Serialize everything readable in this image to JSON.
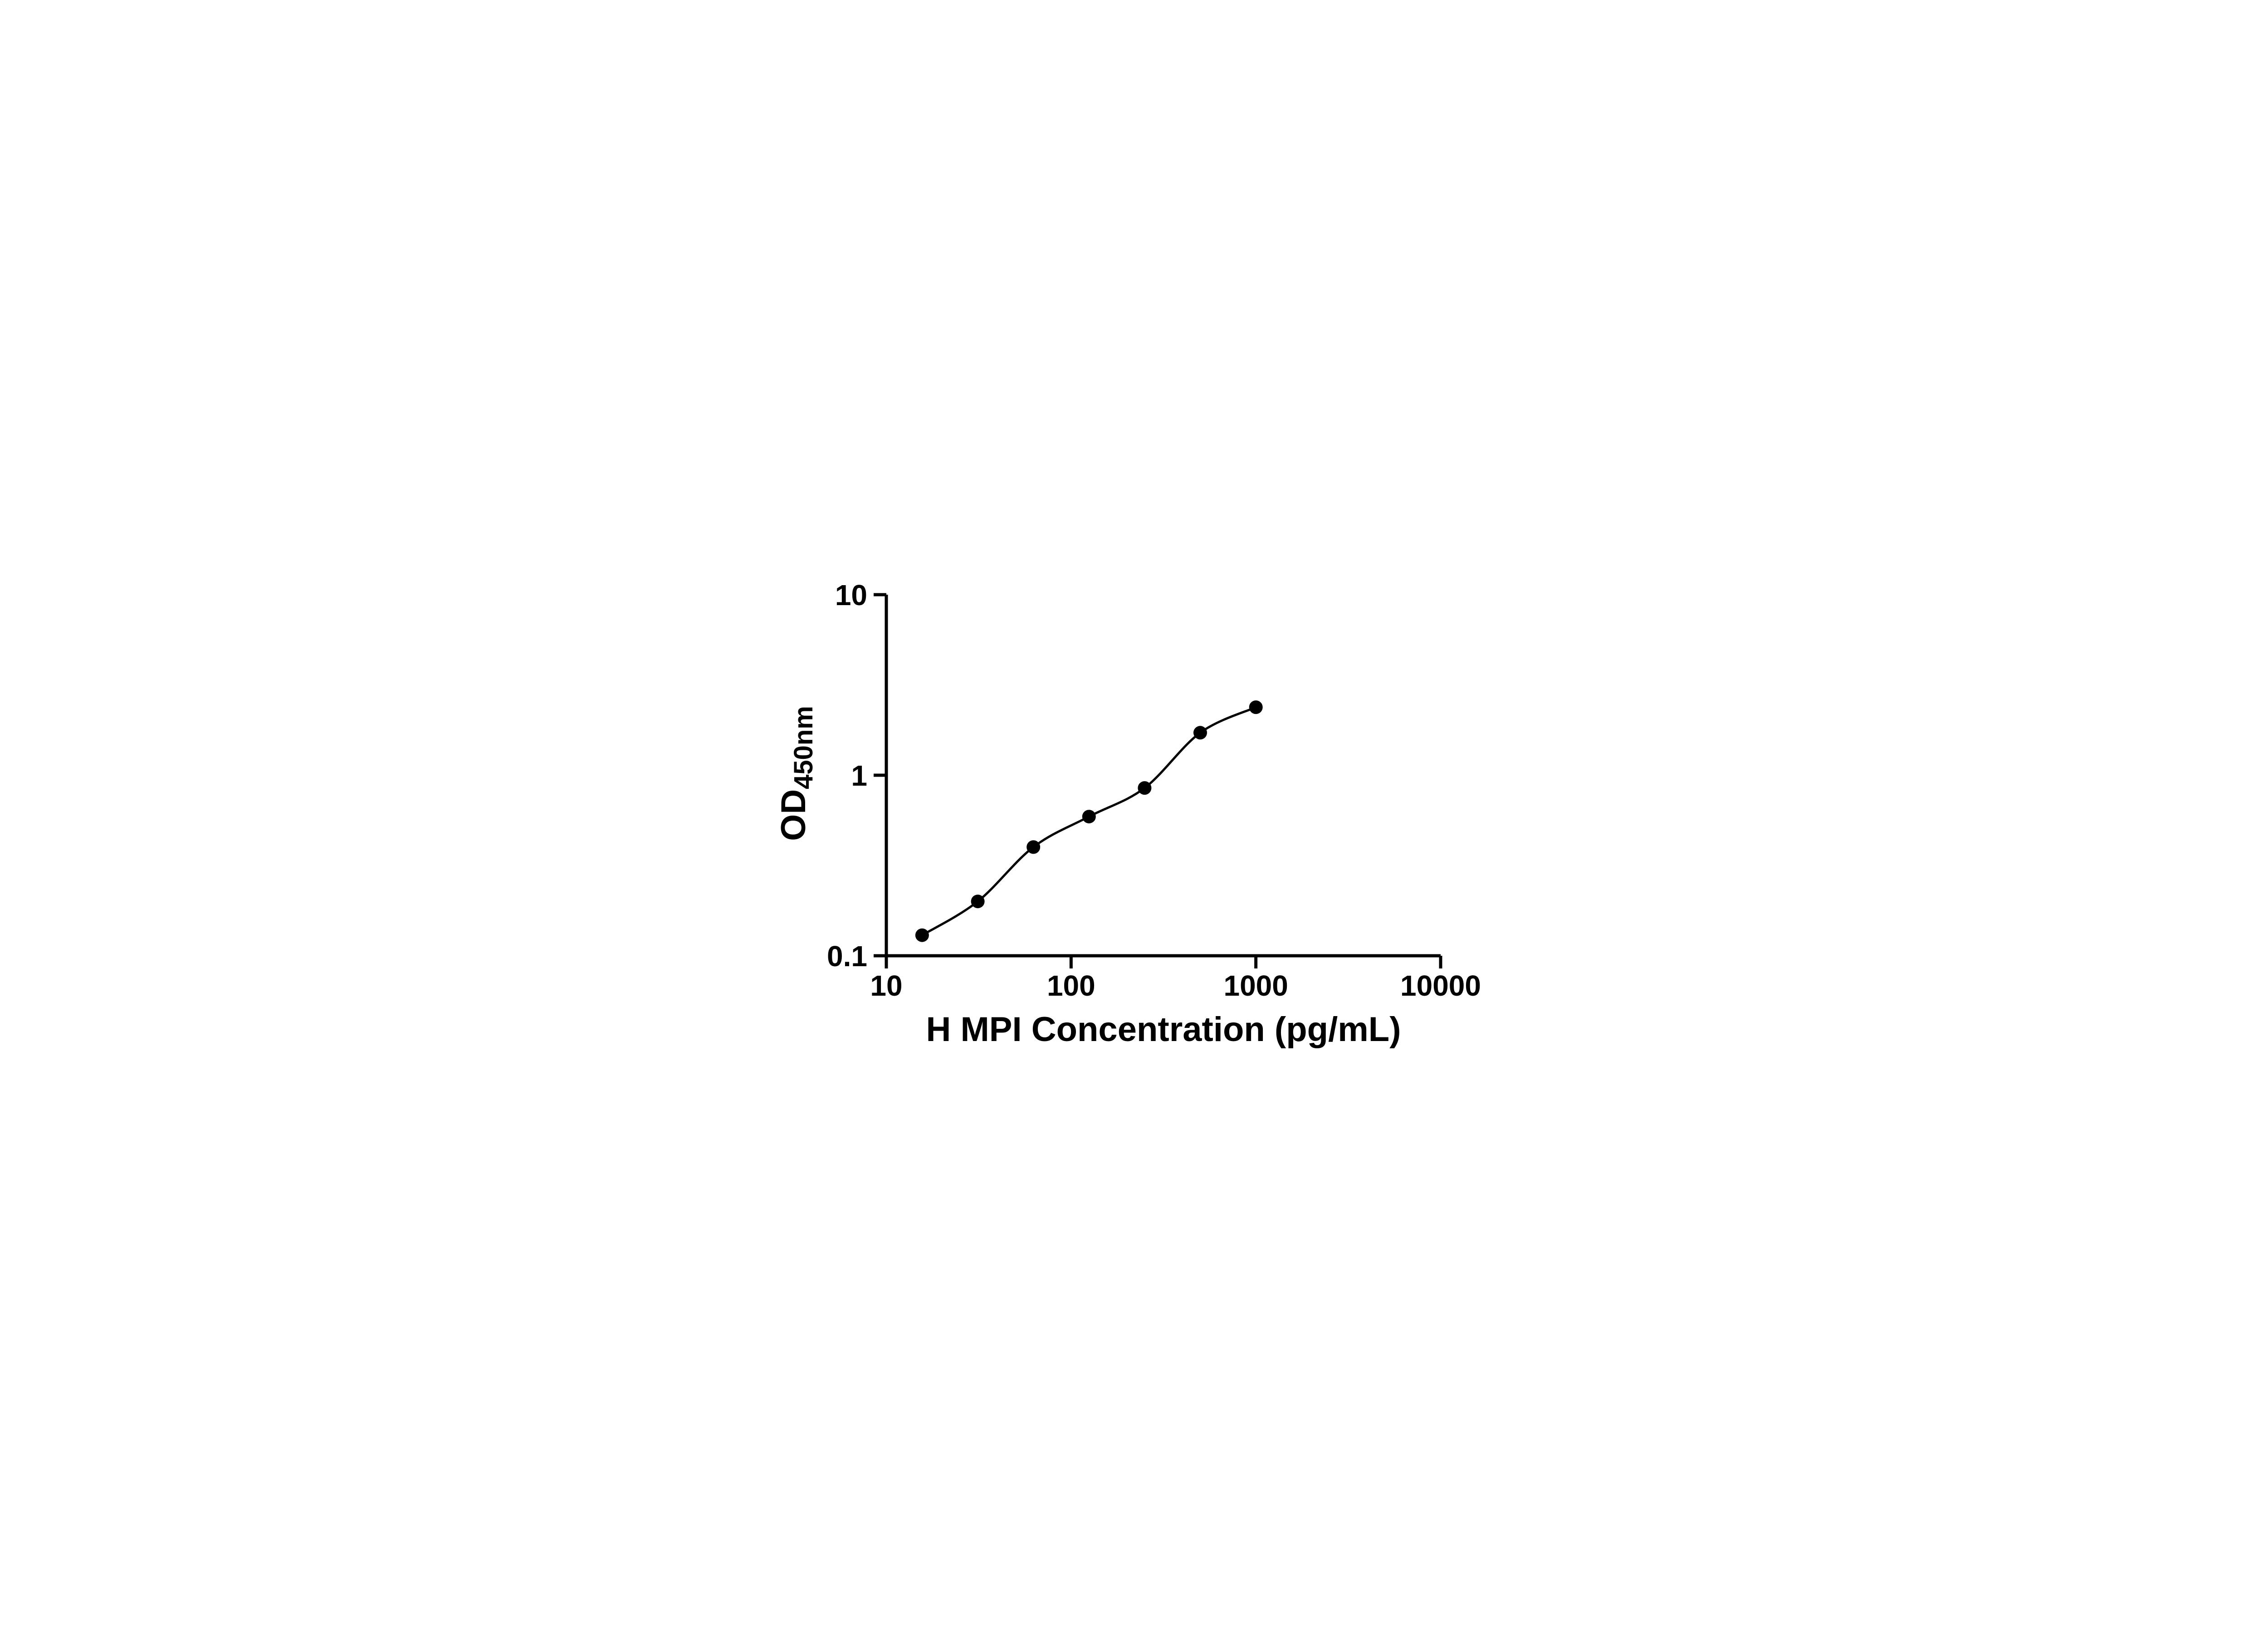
{
  "figure": {
    "description": "ELISA standard curve, log-log scatter plot with fitted curve"
  },
  "chart_data": {
    "type": "scatter",
    "title": "",
    "xlabel": "H MPI Concentration (pg/mL)",
    "ylabel": "OD450nm",
    "ylabel_main": "OD",
    "ylabel_sub": "450nm",
    "x_scale": "log",
    "y_scale": "log",
    "xlim": [
      10,
      10000
    ],
    "ylim": [
      0.1,
      10
    ],
    "x_tick_values": [
      10,
      100,
      1000,
      10000
    ],
    "x_tick_labels": [
      "10",
      "100",
      "1000",
      "10000"
    ],
    "y_tick_values": [
      10,
      1,
      0.1
    ],
    "y_tick_labels": [
      "10",
      "1",
      "0.1"
    ],
    "grid": "off",
    "legend": "none",
    "x": [
      15.625,
      31.25,
      62.5,
      125,
      250,
      500,
      1000
    ],
    "y": [
      0.13,
      0.2,
      0.4,
      0.59,
      0.85,
      1.72,
      2.38
    ],
    "fit_line": "smooth curve through all data points",
    "colors": {
      "axis": "#000000",
      "point": "#000000",
      "line": "#000000",
      "background": "#ffffff"
    }
  }
}
